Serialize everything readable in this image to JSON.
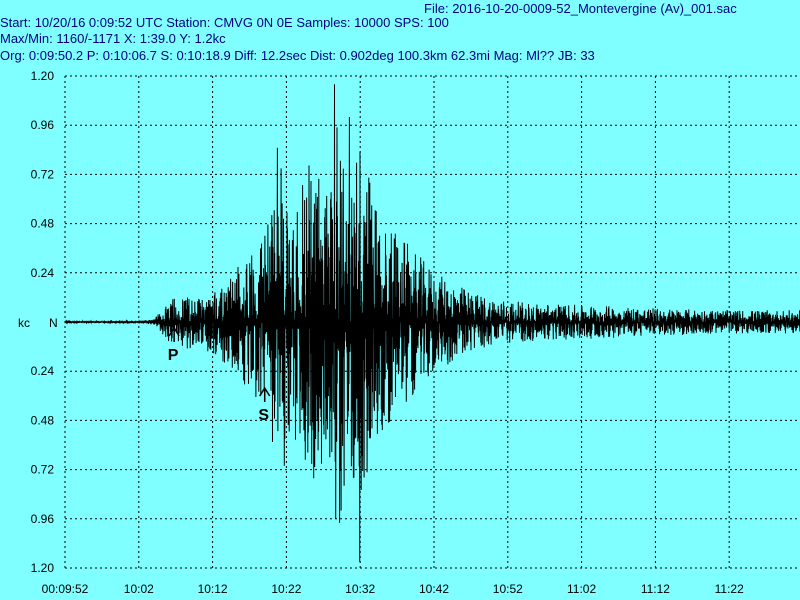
{
  "header": {
    "file_label": "File:",
    "file_value": "2016-10-20-0009-52_Montevergine (Av)_001.sac",
    "start_label": "Start:",
    "start_value": "10/20/16  0:09:52 UTC",
    "station_label": "Station:",
    "station_value": "CMVG 0N 0E",
    "samples_label": "Samples:",
    "samples_value": "10000",
    "sps_label": "SPS:",
    "sps_value": "100",
    "maxmin_label": "Max/Min:",
    "maxmin_value": "1160/-1171",
    "x_label": "X:",
    "x_value": "1:39.0",
    "y_label": "Y:",
    "y_value": "1.2kc",
    "org_label": "Org:",
    "org_value": "0:09:50.2",
    "p_label": "P:",
    "p_value": "0:10:06.7",
    "s_label": "S:",
    "s_value": "0:10:18.9",
    "diff_label": "Diff:",
    "diff_value": "12.2sec",
    "dist_label": "Dist:",
    "dist_value": "0.902deg 100.3km 62.3mi",
    "mag_label": "Mag:",
    "mag_value": "Ml??",
    "jb_label": "JB:",
    "jb_value": "33"
  },
  "chart_data": {
    "type": "line",
    "series": [
      {
        "name": "",
        "envelope_x_s": [
          0,
          10,
          12,
          13,
          14.5,
          16.5,
          18,
          22,
          27,
          29,
          31,
          33,
          35,
          36.5,
          38,
          40,
          42,
          45,
          50,
          55,
          58,
          62,
          68,
          75,
          80,
          90,
          99
        ],
        "envelope_y_kc": [
          0.005,
          0.006,
          0.015,
          0.06,
          0.12,
          0.14,
          0.13,
          0.22,
          0.48,
          0.82,
          0.6,
          0.92,
          0.68,
          1.15,
          0.75,
          0.95,
          0.6,
          0.45,
          0.25,
          0.15,
          0.12,
          0.1,
          0.09,
          0.08,
          0.07,
          0.06,
          0.06
        ]
      }
    ],
    "peaks": [
      {
        "x_s": 36.3,
        "y_kc": 1.16
      },
      {
        "x_s": 39.7,
        "y_kc": -1.17
      },
      {
        "x_s": 38.3,
        "y_kc": 1.0
      },
      {
        "x_s": 37.0,
        "y_kc": -0.98
      },
      {
        "x_s": 28.6,
        "y_kc": 0.85
      },
      {
        "x_s": 37.2,
        "y_kc": -0.92
      }
    ],
    "phase_markers": [
      {
        "label": "P",
        "x_s": 14.7
      },
      {
        "label": "S",
        "x_s": 26.9
      }
    ],
    "y_ticks": [
      "1.20",
      "0.96",
      "0.72",
      "0.48",
      "0.24",
      "0.24",
      "0.48",
      "0.72",
      "0.96",
      "1.20"
    ],
    "y_center_labels": [
      "kc",
      "N"
    ],
    "x_ticks": [
      "00:09:52",
      "10:02",
      "10:12",
      "10:22",
      "10:32",
      "10:42",
      "10:52",
      "11:02",
      "11:12",
      "11:22"
    ],
    "xlim_s": [
      0,
      99
    ],
    "ylim_kc": [
      -1.2,
      1.2
    ],
    "grid": true,
    "colors": {
      "background": "#7fffff",
      "trace": "#000000",
      "grid": "#000000",
      "header": "#000080"
    }
  }
}
